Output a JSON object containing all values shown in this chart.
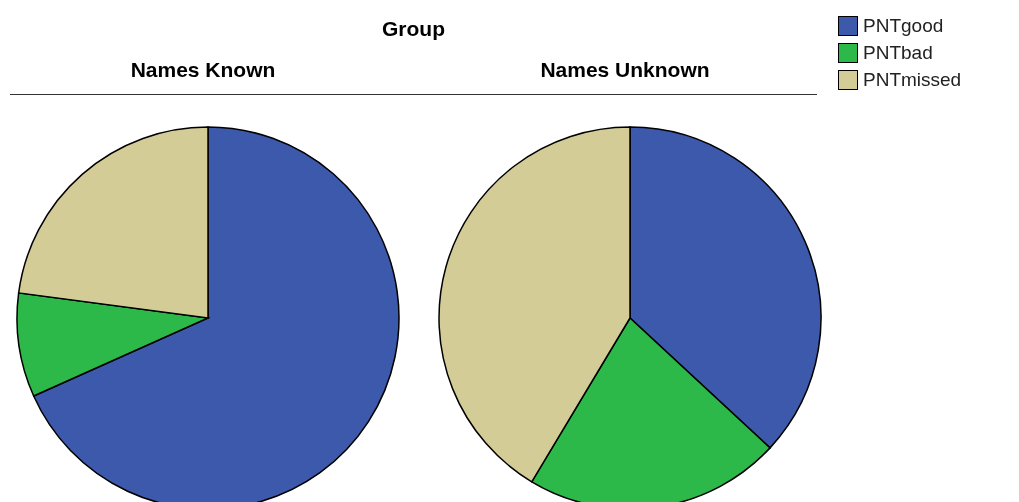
{
  "chart_data": [
    {
      "type": "pie",
      "title": "Names Known",
      "annotations": [
        "Group"
      ],
      "categories": [
        "PNTgood",
        "PNTbad",
        "PNTmissed"
      ],
      "values": [
        68.3,
        8.8,
        22.9
      ],
      "colors": [
        "#3d59ab",
        "#2db84a",
        "#d4cc97"
      ],
      "legend": "top right"
    },
    {
      "type": "pie",
      "title": "Names Unknown",
      "categories": [
        null,
        null,
        null
      ],
      "values": [
        36.9,
        21.7,
        41.4
      ],
      "colors": [
        "#3d59ab",
        "#2db84a",
        "#d4cc97"
      ]
    }
  ]
}
